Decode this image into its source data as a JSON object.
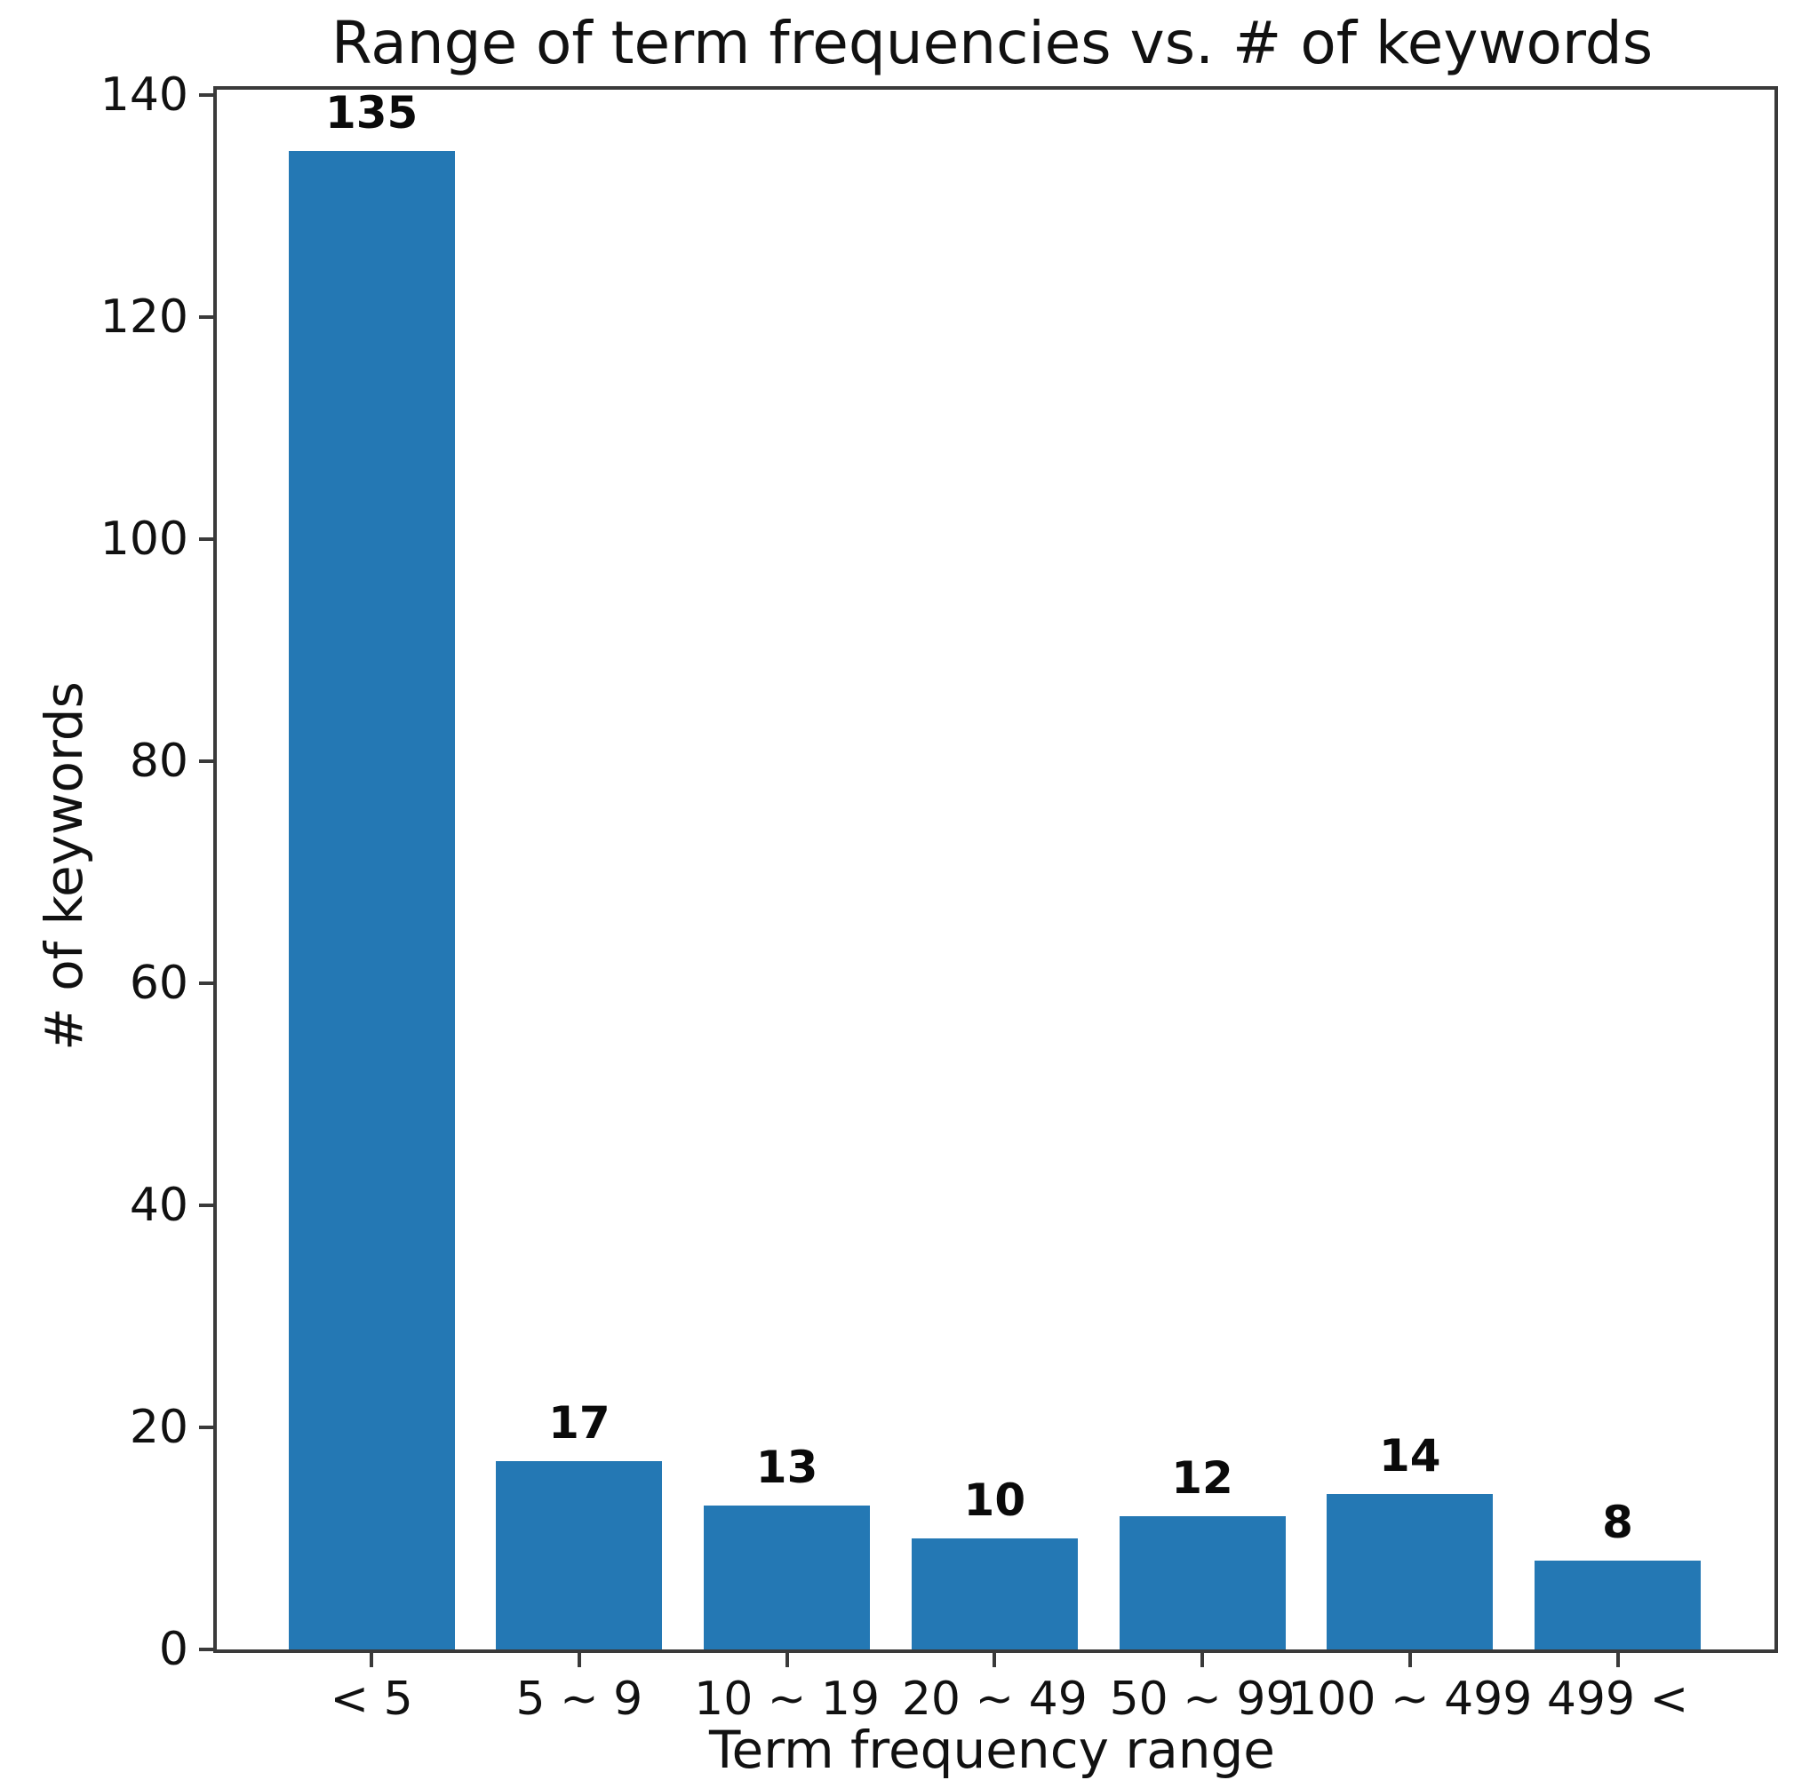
{
  "chart_data": {
    "type": "bar",
    "title": "Range of term frequencies vs. # of keywords",
    "xlabel": "Term frequency range",
    "ylabel": "# of keywords",
    "categories": [
      "< 5",
      "5 ~ 9",
      "10 ~ 19",
      "20 ~ 49",
      "50 ~ 99",
      "100 ~ 499",
      "499 <"
    ],
    "values": [
      135,
      17,
      13,
      10,
      12,
      14,
      8
    ],
    "bar_value_labels": [
      "135",
      "17",
      "13",
      "10",
      "12",
      "14",
      "8"
    ],
    "yticks": [
      0,
      20,
      40,
      60,
      80,
      100,
      120,
      140
    ],
    "ylim": [
      0,
      140.5
    ],
    "bar_color": "#2478b4",
    "spine_color": "#3a3a3a",
    "grid": false,
    "legend": null
  }
}
